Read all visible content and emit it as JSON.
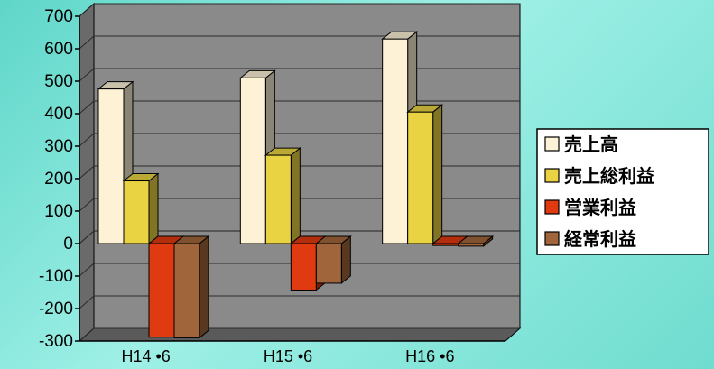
{
  "chart_data": {
    "type": "bar",
    "categories": [
      "H14 •6",
      "H15 •6",
      "H16 •6"
    ],
    "series": [
      {
        "name": "売上高",
        "values": [
          476,
          510,
          630
        ],
        "color": "#fdf1d6"
      },
      {
        "name": "売上総利益",
        "values": [
          193,
          272,
          405
        ],
        "color": "#ead343"
      },
      {
        "name": "営業利益",
        "values": [
          -288,
          -143,
          -6
        ],
        "color": "#e03a10"
      },
      {
        "name": "経常利益",
        "values": [
          -290,
          -122,
          -8
        ],
        "color": "#a0653a"
      }
    ],
    "ylim": [
      -300,
      700
    ],
    "yticks": [
      "700",
      "600",
      "500",
      "400",
      "300",
      "200",
      "100",
      "0",
      "-100",
      "-200",
      "-300"
    ],
    "grid": true,
    "legend": "right",
    "style": "3d",
    "colors": {
      "plot_background": "#8a8a8a",
      "background": "#7fe6da"
    }
  }
}
